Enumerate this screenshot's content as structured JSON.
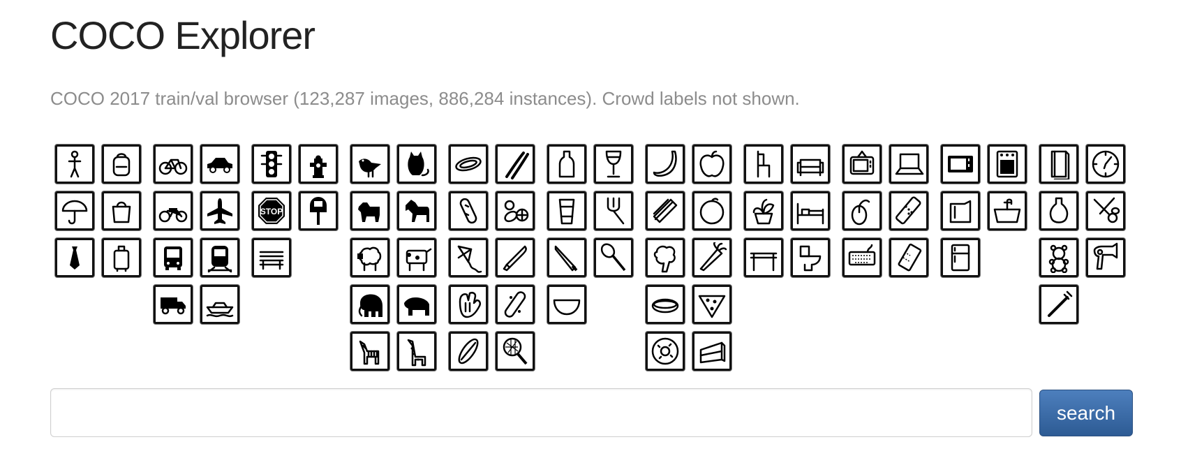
{
  "header": {
    "title": "COCO Explorer",
    "subtitle": "COCO 2017 train/val browser (123,287 images, 886,284 instances). Crowd labels not shown."
  },
  "search": {
    "value": "",
    "button_label": "search"
  },
  "category_tiles": [
    {
      "name": "person",
      "icon": "person-icon"
    },
    {
      "name": "backpack",
      "icon": "backpack-icon"
    },
    {
      "name": "umbrella",
      "icon": "umbrella-icon"
    },
    {
      "name": "handbag",
      "icon": "handbag-icon"
    },
    {
      "name": "tie",
      "icon": "tie-icon"
    },
    {
      "name": "suitcase",
      "icon": "suitcase-icon"
    },
    {
      "name": "bicycle",
      "icon": "bicycle-icon"
    },
    {
      "name": "car",
      "icon": "car-icon"
    },
    {
      "name": "motorcycle",
      "icon": "motorcycle-icon"
    },
    {
      "name": "airplane",
      "icon": "airplane-icon"
    },
    {
      "name": "bus",
      "icon": "bus-icon"
    },
    {
      "name": "train",
      "icon": "train-icon"
    },
    {
      "name": "truck",
      "icon": "truck-icon"
    },
    {
      "name": "boat",
      "icon": "boat-icon"
    },
    {
      "name": "traffic light",
      "icon": "traffic-light-icon"
    },
    {
      "name": "fire hydrant",
      "icon": "fire-hydrant-icon"
    },
    {
      "name": "stop sign",
      "icon": "stop-sign-icon",
      "text": "STOP"
    },
    {
      "name": "parking meter",
      "icon": "parking-meter-icon"
    },
    {
      "name": "bench",
      "icon": "bench-icon"
    },
    {
      "name": "bird",
      "icon": "bird-icon"
    },
    {
      "name": "cat",
      "icon": "cat-icon"
    },
    {
      "name": "dog",
      "icon": "dog-icon"
    },
    {
      "name": "horse",
      "icon": "horse-icon"
    },
    {
      "name": "sheep",
      "icon": "sheep-icon"
    },
    {
      "name": "cow",
      "icon": "cow-icon"
    },
    {
      "name": "elephant",
      "icon": "elephant-icon"
    },
    {
      "name": "bear",
      "icon": "bear-icon"
    },
    {
      "name": "zebra",
      "icon": "zebra-icon"
    },
    {
      "name": "giraffe",
      "icon": "giraffe-icon"
    },
    {
      "name": "frisbee",
      "icon": "frisbee-icon"
    },
    {
      "name": "skis",
      "icon": "skis-icon"
    },
    {
      "name": "snowboard",
      "icon": "snowboard-icon"
    },
    {
      "name": "sports ball",
      "icon": "sports-ball-icon"
    },
    {
      "name": "kite",
      "icon": "kite-icon"
    },
    {
      "name": "baseball bat",
      "icon": "baseball-bat-icon"
    },
    {
      "name": "baseball glove",
      "icon": "baseball-glove-icon"
    },
    {
      "name": "skateboard",
      "icon": "skateboard-icon"
    },
    {
      "name": "surfboard",
      "icon": "surfboard-icon"
    },
    {
      "name": "tennis racket",
      "icon": "tennis-racket-icon"
    },
    {
      "name": "bottle",
      "icon": "bottle-icon"
    },
    {
      "name": "wine glass",
      "icon": "wine-glass-icon"
    },
    {
      "name": "cup",
      "icon": "cup-icon"
    },
    {
      "name": "fork",
      "icon": "fork-icon"
    },
    {
      "name": "knife",
      "icon": "knife-icon"
    },
    {
      "name": "spoon",
      "icon": "spoon-icon"
    },
    {
      "name": "bowl",
      "icon": "bowl-icon"
    },
    {
      "name": "banana",
      "icon": "banana-icon"
    },
    {
      "name": "apple",
      "icon": "apple-icon"
    },
    {
      "name": "sandwich",
      "icon": "sandwich-icon"
    },
    {
      "name": "orange",
      "icon": "orange-icon"
    },
    {
      "name": "broccoli",
      "icon": "broccoli-icon"
    },
    {
      "name": "carrot",
      "icon": "carrot-icon"
    },
    {
      "name": "hot dog",
      "icon": "hot-dog-icon"
    },
    {
      "name": "pizza",
      "icon": "pizza-icon"
    },
    {
      "name": "donut",
      "icon": "donut-icon"
    },
    {
      "name": "cake",
      "icon": "cake-icon"
    },
    {
      "name": "chair",
      "icon": "chair-icon"
    },
    {
      "name": "couch",
      "icon": "couch-icon"
    },
    {
      "name": "potted plant",
      "icon": "potted-plant-icon"
    },
    {
      "name": "bed",
      "icon": "bed-icon"
    },
    {
      "name": "dining table",
      "icon": "dining-table-icon"
    },
    {
      "name": "toilet",
      "icon": "toilet-icon"
    },
    {
      "name": "tv",
      "icon": "tv-icon"
    },
    {
      "name": "laptop",
      "icon": "laptop-icon"
    },
    {
      "name": "mouse",
      "icon": "mouse-icon"
    },
    {
      "name": "remote",
      "icon": "remote-icon"
    },
    {
      "name": "keyboard",
      "icon": "keyboard-icon"
    },
    {
      "name": "cell phone",
      "icon": "cell-phone-icon"
    },
    {
      "name": "microwave",
      "icon": "microwave-icon"
    },
    {
      "name": "oven",
      "icon": "oven-icon"
    },
    {
      "name": "toaster",
      "icon": "toaster-icon"
    },
    {
      "name": "sink",
      "icon": "sink-icon"
    },
    {
      "name": "refrigerator",
      "icon": "refrigerator-icon"
    },
    {
      "name": "book",
      "icon": "book-icon"
    },
    {
      "name": "clock",
      "icon": "clock-icon"
    },
    {
      "name": "vase",
      "icon": "vase-icon"
    },
    {
      "name": "scissors",
      "icon": "scissors-icon"
    },
    {
      "name": "teddy bear",
      "icon": "teddy-bear-icon"
    },
    {
      "name": "hair drier",
      "icon": "hair-drier-icon"
    },
    {
      "name": "toothbrush",
      "icon": "toothbrush-icon"
    }
  ]
}
